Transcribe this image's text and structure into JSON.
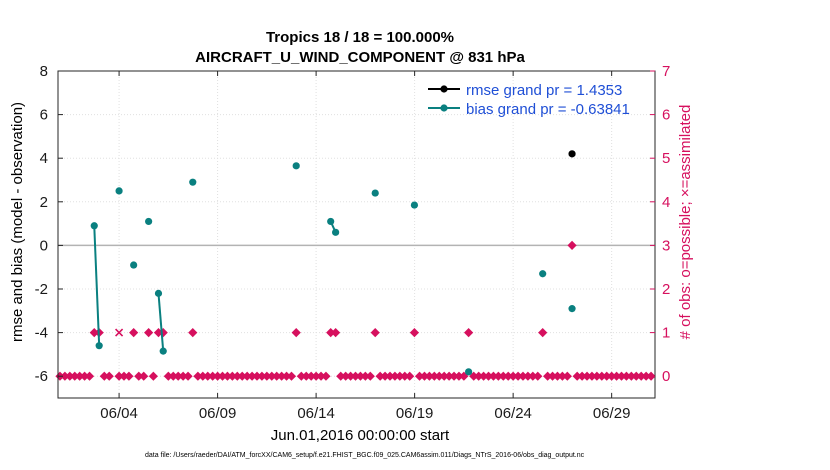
{
  "chart_data": {
    "type": "line",
    "title": "Tropics 18 / 18 = 100.000%",
    "subtitle": "AIRCRAFT_U_WIND_COMPONENT @ 831 hPa",
    "xlabel": "Jun.01,2016 00:00:00 start",
    "ylabel": "rmse and bias (model - observation)",
    "y2label": "# of obs: o=possible; ×=assimilated",
    "xlim": [
      0.9,
      31.2
    ],
    "ylim": [
      -7,
      8
    ],
    "y2lim": [
      -0.5,
      7
    ],
    "x_ticks": [
      4,
      9,
      14,
      19,
      24,
      29
    ],
    "x_tick_labels": [
      "06/04",
      "06/09",
      "06/14",
      "06/19",
      "06/24",
      "06/29"
    ],
    "y_ticks": [
      -6,
      -4,
      -2,
      0,
      2,
      4,
      6,
      8
    ],
    "y_tick_labels": [
      "-6",
      "-4",
      "-2",
      "0",
      "2",
      "4",
      "6",
      "8"
    ],
    "y2_ticks": [
      0,
      1,
      2,
      3,
      4,
      5,
      6,
      7
    ],
    "y2_tick_labels": [
      "0",
      "1",
      "2",
      "3",
      "4",
      "5",
      "6",
      "7"
    ],
    "zero_line": 0,
    "legend": [
      "rmse grand pr = 1.4353",
      "bias grand pr = -0.63841"
    ],
    "legend_position": "top-right",
    "colors": {
      "rmse": "#000000",
      "bias": "#0a8080",
      "obs": "#d6105e",
      "zero": "#b3b3b3",
      "axis": "#262626"
    },
    "series": [
      {
        "name": "rmse",
        "segments": [
          [
            [
              26.99,
              4.2
            ]
          ]
        ]
      },
      {
        "name": "bias",
        "segments": [
          [
            [
              2.74,
              0.9
            ],
            [
              2.99,
              -4.6
            ]
          ],
          [
            [
              4.0,
              2.5
            ]
          ],
          [
            [
              4.74,
              -0.9
            ]
          ],
          [
            [
              5.5,
              1.1
            ]
          ],
          [
            [
              6.0,
              -2.2
            ],
            [
              6.24,
              -4.85
            ]
          ],
          [
            [
              7.74,
              2.9
            ]
          ],
          [
            [
              12.99,
              3.65
            ]
          ],
          [
            [
              14.74,
              1.1
            ],
            [
              14.99,
              0.6
            ]
          ],
          [
            [
              17.0,
              2.4
            ]
          ],
          [
            [
              18.99,
              1.85
            ]
          ],
          [
            [
              21.74,
              -5.8
            ]
          ],
          [
            [
              25.5,
              -1.3
            ]
          ],
          [
            [
              26.99,
              -2.9
            ]
          ]
        ]
      }
    ],
    "obs_possible": {
      "x": [
        1.0,
        1.25,
        1.5,
        1.75,
        2.0,
        2.25,
        2.5,
        2.74,
        2.99,
        3.25,
        3.5,
        4.0,
        4.25,
        4.5,
        4.74,
        5.0,
        5.25,
        5.5,
        5.74,
        6.0,
        6.24,
        6.5,
        6.75,
        7.0,
        7.25,
        7.5,
        7.74,
        8.0,
        8.25,
        8.5,
        8.75,
        9.0,
        9.25,
        9.5,
        9.75,
        10.0,
        10.25,
        10.5,
        10.75,
        11.0,
        11.25,
        11.5,
        11.75,
        12.0,
        12.25,
        12.5,
        12.75,
        12.99,
        13.25,
        13.5,
        13.75,
        14.0,
        14.25,
        14.5,
        14.74,
        14.99,
        15.25,
        15.5,
        15.75,
        16.0,
        16.25,
        16.5,
        16.75,
        17.0,
        17.25,
        17.5,
        17.75,
        18.0,
        18.25,
        18.5,
        18.75,
        18.99,
        19.25,
        19.5,
        19.75,
        20.0,
        20.25,
        20.5,
        20.75,
        21.0,
        21.25,
        21.5,
        21.74,
        22.0,
        22.25,
        22.5,
        22.75,
        23.0,
        23.25,
        23.5,
        23.75,
        24.0,
        24.25,
        24.5,
        24.75,
        25.0,
        25.25,
        25.5,
        25.75,
        26.0,
        26.25,
        26.5,
        26.75,
        26.99,
        27.25,
        27.5,
        27.75,
        28.0,
        28.25,
        28.5,
        28.75,
        29.0,
        29.25,
        29.5,
        29.75,
        30.0,
        30.25,
        30.5,
        30.75,
        31.0
      ],
      "y": [
        0,
        0,
        0,
        0,
        0,
        0,
        0,
        1,
        1,
        0,
        0,
        0,
        0,
        0,
        1,
        0,
        0,
        1,
        0,
        1,
        1,
        0,
        0,
        0,
        0,
        0,
        1,
        0,
        0,
        0,
        0,
        0,
        0,
        0,
        0,
        0,
        0,
        0,
        0,
        0,
        0,
        0,
        0,
        0,
        0,
        0,
        0,
        1,
        0,
        0,
        0,
        0,
        0,
        0,
        1,
        1,
        0,
        0,
        0,
        0,
        0,
        0,
        0,
        1,
        0,
        0,
        0,
        0,
        0,
        0,
        0,
        1,
        0,
        0,
        0,
        0,
        0,
        0,
        0,
        0,
        0,
        0,
        1,
        0,
        0,
        0,
        0,
        0,
        0,
        0,
        0,
        0,
        0,
        0,
        0,
        0,
        0,
        1,
        0,
        0,
        0,
        0,
        0,
        3,
        0,
        0,
        0,
        0,
        0,
        0,
        0,
        0,
        0,
        0,
        0,
        0,
        0,
        0,
        0,
        0
      ]
    },
    "obs_assimilated": {
      "x": [
        4.0
      ],
      "y": [
        1
      ]
    }
  },
  "footer": "data file: /Users/raeder/DAI/ATM_forcXX/CAM6_setup/f.e21.FHIST_BGC.f09_025.CAM6assim.011/Diags_NTrS_2016-06/obs_diag_output.nc"
}
